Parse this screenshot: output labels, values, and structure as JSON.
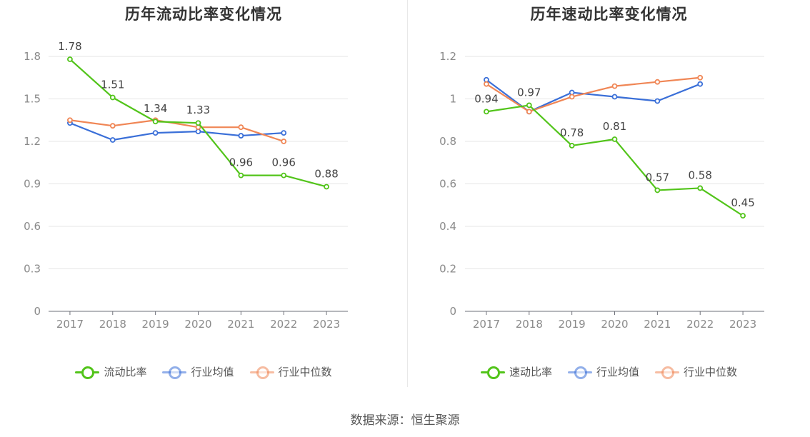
{
  "chart_data": [
    {
      "type": "line",
      "title": "历年流动比率变化情况",
      "categories": [
        "2017",
        "2018",
        "2019",
        "2020",
        "2021",
        "2022",
        "2023"
      ],
      "ylim": [
        0,
        1.8
      ],
      "yticks": [
        0,
        0.3,
        0.6,
        0.9,
        1.2,
        1.5,
        1.8
      ],
      "ytick_labels": [
        "0",
        "0.3",
        "0.6",
        "0.9",
        "1.2",
        "1.5",
        "1.8"
      ],
      "grid": true,
      "legend_position": "bottom",
      "series": [
        {
          "name": "流动比率",
          "color": "#52c41a",
          "values": [
            1.78,
            1.51,
            1.34,
            1.33,
            0.96,
            0.96,
            0.88
          ],
          "labels": [
            "1.78",
            "1.51",
            "1.34",
            "1.33",
            "0.96",
            "0.96",
            "0.88"
          ]
        },
        {
          "name": "行业均值",
          "color": "#3a6fd8",
          "values": [
            1.33,
            1.21,
            1.26,
            1.27,
            1.24,
            1.26,
            null
          ]
        },
        {
          "name": "行业中位数",
          "color": "#f08655",
          "values": [
            1.35,
            1.31,
            1.35,
            1.3,
            1.3,
            1.2,
            null
          ]
        }
      ]
    },
    {
      "type": "line",
      "title": "历年速动比率变化情况",
      "categories": [
        "2017",
        "2018",
        "2019",
        "2020",
        "2021",
        "2022",
        "2023"
      ],
      "ylim": [
        0,
        1.2
      ],
      "yticks": [
        0,
        0.2,
        0.4,
        0.6,
        0.8,
        1.0,
        1.2
      ],
      "ytick_labels": [
        "0",
        "0.2",
        "0.4",
        "0.6",
        "0.8",
        "1",
        "1.2"
      ],
      "grid": true,
      "legend_position": "bottom",
      "series": [
        {
          "name": "速动比率",
          "color": "#52c41a",
          "values": [
            0.94,
            0.97,
            0.78,
            0.81,
            0.57,
            0.58,
            0.45
          ],
          "labels": [
            "0.94",
            "0.97",
            "0.78",
            "0.81",
            "0.57",
            "0.58",
            "0.45"
          ]
        },
        {
          "name": "行业均值",
          "color": "#3a6fd8",
          "values": [
            1.09,
            0.94,
            1.03,
            1.01,
            0.99,
            1.07,
            null
          ]
        },
        {
          "name": "行业中位数",
          "color": "#f08655",
          "values": [
            1.07,
            0.94,
            1.01,
            1.06,
            1.08,
            1.1,
            null
          ]
        }
      ]
    }
  ],
  "footer": {
    "source": "数据来源：恒生聚源"
  }
}
